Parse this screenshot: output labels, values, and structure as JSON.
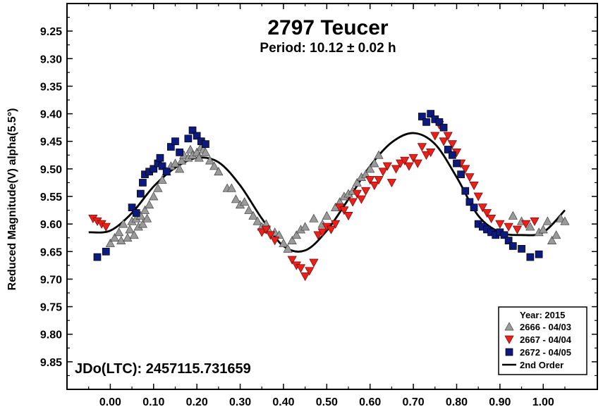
{
  "chart_data": {
    "type": "scatter",
    "title": "2797 Teucer",
    "subtitle": "Period: 10.12 ± 0.02 h",
    "xlabel": "",
    "ylabel": "Reduced Magnitude(V) alpha(5.5°)",
    "xlim": [
      -0.1,
      1.125
    ],
    "ylim": [
      9.9,
      9.2
    ],
    "y_inverted": true,
    "x_ticks": [
      "0.00",
      "0.10",
      "0.20",
      "0.30",
      "0.40",
      "0.50",
      "0.60",
      "0.70",
      "0.80",
      "0.90",
      "1.00"
    ],
    "y_ticks": [
      "9.25",
      "9.30",
      "9.35",
      "9.40",
      "9.45",
      "9.50",
      "9.55",
      "9.60",
      "9.65",
      "9.70",
      "9.75",
      "9.80",
      "9.85"
    ],
    "grid": false,
    "annotation": "JDo(LTC): 2457115.731659",
    "legend": {
      "position": "bottom-right",
      "title": "Year: 2015",
      "entries": [
        {
          "label": "2666 - 04/03",
          "marker": "triangle-up",
          "color": "#9a9a9a"
        },
        {
          "label": "2667 - 04/04",
          "marker": "triangle-down",
          "color": "#e8211b"
        },
        {
          "label": "2672 - 04/05",
          "marker": "square",
          "color": "#0d1a7d"
        },
        {
          "label": "2nd Order",
          "marker": "line",
          "color": "#000000"
        }
      ]
    },
    "series": [
      {
        "name": "2666 - 04/03",
        "marker": "triangle-up",
        "color": "#9a9a9a",
        "points": [
          [
            0.0,
            9.635
          ],
          [
            0.01,
            9.625
          ],
          [
            0.02,
            9.615
          ],
          [
            0.025,
            9.63
          ],
          [
            0.03,
            9.6
          ],
          [
            0.04,
            9.625
          ],
          [
            0.045,
            9.61
          ],
          [
            0.05,
            9.595
          ],
          [
            0.055,
            9.62
          ],
          [
            0.06,
            9.59
          ],
          [
            0.065,
            9.605
          ],
          [
            0.07,
            9.585
          ],
          [
            0.075,
            9.6
          ],
          [
            0.08,
            9.575
          ],
          [
            0.085,
            9.59
          ],
          [
            0.09,
            9.565
          ],
          [
            0.1,
            9.55
          ],
          [
            0.11,
            9.535
          ],
          [
            0.12,
            9.52
          ],
          [
            0.13,
            9.505
          ],
          [
            0.14,
            9.495
          ],
          [
            0.15,
            9.49
          ],
          [
            0.16,
            9.5
          ],
          [
            0.165,
            9.485
          ],
          [
            0.17,
            9.475
          ],
          [
            0.18,
            9.48
          ],
          [
            0.185,
            9.465
          ],
          [
            0.19,
            9.475
          ],
          [
            0.2,
            9.47
          ],
          [
            0.205,
            9.48
          ],
          [
            0.21,
            9.46
          ],
          [
            0.215,
            9.465
          ],
          [
            0.22,
            9.47
          ],
          [
            0.23,
            9.485
          ],
          [
            0.24,
            9.495
          ],
          [
            0.25,
            9.505
          ],
          [
            0.27,
            9.535
          ],
          [
            0.28,
            9.535
          ],
          [
            0.29,
            9.555
          ],
          [
            0.3,
            9.565
          ],
          [
            0.31,
            9.56
          ],
          [
            0.32,
            9.575
          ],
          [
            0.33,
            9.585
          ],
          [
            0.34,
            9.595
          ],
          [
            0.35,
            9.605
          ],
          [
            0.36,
            9.6
          ],
          [
            0.365,
            9.61
          ],
          [
            0.38,
            9.615
          ],
          [
            0.39,
            9.62
          ],
          [
            0.4,
            9.635
          ],
          [
            0.41,
            9.645
          ],
          [
            0.42,
            9.63
          ],
          [
            0.43,
            9.62
          ],
          [
            0.44,
            9.61
          ],
          [
            0.45,
            9.605
          ],
          [
            0.47,
            9.59
          ],
          [
            0.49,
            9.6
          ],
          [
            0.5,
            9.585
          ],
          [
            0.52,
            9.57
          ],
          [
            0.53,
            9.56
          ],
          [
            0.54,
            9.55
          ],
          [
            0.55,
            9.545
          ],
          [
            0.56,
            9.54
          ],
          [
            0.57,
            9.525
          ],
          [
            0.58,
            9.515
          ],
          [
            0.59,
            9.51
          ],
          [
            0.6,
            9.5
          ],
          [
            0.61,
            9.49
          ],
          [
            0.62,
            9.475
          ],
          [
            0.93,
            9.585
          ],
          [
            0.95,
            9.595
          ],
          [
            0.97,
            9.605
          ],
          [
            0.99,
            9.615
          ],
          [
            1.0,
            9.61
          ],
          [
            1.01,
            9.595
          ],
          [
            1.02,
            9.63
          ],
          [
            1.03,
            9.62
          ],
          [
            1.04,
            9.59
          ],
          [
            1.05,
            9.595
          ]
        ]
      },
      {
        "name": "2667 - 04/04",
        "marker": "triangle-down",
        "color": "#e8211b",
        "points": [
          [
            -0.04,
            9.59
          ],
          [
            -0.03,
            9.595
          ],
          [
            -0.02,
            9.6
          ],
          [
            -0.01,
            9.605
          ],
          [
            0.35,
            9.615
          ],
          [
            0.36,
            9.61
          ],
          [
            0.37,
            9.62
          ],
          [
            0.38,
            9.63
          ],
          [
            0.42,
            9.665
          ],
          [
            0.43,
            9.675
          ],
          [
            0.44,
            9.68
          ],
          [
            0.45,
            9.695
          ],
          [
            0.46,
            9.685
          ],
          [
            0.47,
            9.67
          ],
          [
            0.48,
            9.62
          ],
          [
            0.49,
            9.615
          ],
          [
            0.5,
            9.605
          ],
          [
            0.51,
            9.61
          ],
          [
            0.52,
            9.6
          ],
          [
            0.53,
            9.57
          ],
          [
            0.54,
            9.575
          ],
          [
            0.55,
            9.585
          ],
          [
            0.56,
            9.56
          ],
          [
            0.57,
            9.545
          ],
          [
            0.58,
            9.555
          ],
          [
            0.59,
            9.54
          ],
          [
            0.6,
            9.52
          ],
          [
            0.61,
            9.53
          ],
          [
            0.62,
            9.52
          ],
          [
            0.63,
            9.505
          ],
          [
            0.64,
            9.495
          ],
          [
            0.65,
            9.525
          ],
          [
            0.66,
            9.5
          ],
          [
            0.67,
            9.49
          ],
          [
            0.68,
            9.485
          ],
          [
            0.69,
            9.495
          ],
          [
            0.7,
            9.48
          ],
          [
            0.71,
            9.49
          ],
          [
            0.72,
            9.46
          ],
          [
            0.73,
            9.475
          ],
          [
            0.74,
            9.47
          ],
          [
            0.75,
            9.44
          ],
          [
            0.76,
            9.42
          ],
          [
            0.77,
            9.45
          ],
          [
            0.78,
            9.44
          ],
          [
            0.79,
            9.455
          ],
          [
            0.8,
            9.47
          ],
          [
            0.81,
            9.49
          ],
          [
            0.82,
            9.5
          ],
          [
            0.83,
            9.515
          ],
          [
            0.84,
            9.53
          ],
          [
            0.85,
            9.55
          ],
          [
            0.86,
            9.57
          ],
          [
            0.87,
            9.58
          ],
          [
            0.88,
            9.59
          ],
          [
            0.9,
            9.6
          ],
          [
            0.92,
            9.605
          ],
          [
            0.94,
            9.61
          ],
          [
            0.96,
            9.6
          ],
          [
            0.98,
            9.595
          ]
        ]
      },
      {
        "name": "2672 - 04/05",
        "marker": "square",
        "color": "#0d1a7d",
        "points": [
          [
            -0.03,
            9.66
          ],
          [
            -0.01,
            9.65
          ],
          [
            0.05,
            9.57
          ],
          [
            0.06,
            9.58
          ],
          [
            0.07,
            9.545
          ],
          [
            0.075,
            9.525
          ],
          [
            0.08,
            9.51
          ],
          [
            0.09,
            9.505
          ],
          [
            0.1,
            9.5
          ],
          [
            0.11,
            9.49
          ],
          [
            0.115,
            9.48
          ],
          [
            0.12,
            9.495
          ],
          [
            0.13,
            9.505
          ],
          [
            0.14,
            9.46
          ],
          [
            0.15,
            9.45
          ],
          [
            0.16,
            9.47
          ],
          [
            0.18,
            9.445
          ],
          [
            0.19,
            9.43
          ],
          [
            0.2,
            9.44
          ],
          [
            0.21,
            9.45
          ],
          [
            0.22,
            9.455
          ],
          [
            0.72,
            9.405
          ],
          [
            0.73,
            9.415
          ],
          [
            0.74,
            9.4
          ],
          [
            0.75,
            9.41
          ],
          [
            0.76,
            9.415
          ],
          [
            0.77,
            9.425
          ],
          [
            0.78,
            9.465
          ],
          [
            0.79,
            9.475
          ],
          [
            0.8,
            9.49
          ],
          [
            0.81,
            9.51
          ],
          [
            0.82,
            9.54
          ],
          [
            0.83,
            9.56
          ],
          [
            0.84,
            9.57
          ],
          [
            0.85,
            9.6
          ],
          [
            0.86,
            9.605
          ],
          [
            0.87,
            9.61
          ],
          [
            0.88,
            9.615
          ],
          [
            0.89,
            9.62
          ],
          [
            0.9,
            9.615
          ],
          [
            0.91,
            9.62
          ],
          [
            0.92,
            9.63
          ],
          [
            0.93,
            9.64
          ],
          [
            0.95,
            9.645
          ],
          [
            0.97,
            9.66
          ],
          [
            0.99,
            9.655
          ]
        ]
      }
    ],
    "fit_curve": {
      "name": "2nd Order",
      "points": [
        [
          -0.05,
          9.615
        ],
        [
          0.0,
          9.612
        ],
        [
          0.05,
          9.58
        ],
        [
          0.1,
          9.532
        ],
        [
          0.15,
          9.498
        ],
        [
          0.2,
          9.48
        ],
        [
          0.25,
          9.488
        ],
        [
          0.3,
          9.53
        ],
        [
          0.35,
          9.59
        ],
        [
          0.4,
          9.64
        ],
        [
          0.45,
          9.648
        ],
        [
          0.5,
          9.612
        ],
        [
          0.55,
          9.555
        ],
        [
          0.6,
          9.495
        ],
        [
          0.65,
          9.452
        ],
        [
          0.7,
          9.435
        ],
        [
          0.75,
          9.455
        ],
        [
          0.8,
          9.515
        ],
        [
          0.85,
          9.585
        ],
        [
          0.9,
          9.615
        ],
        [
          0.95,
          9.62
        ],
        [
          1.0,
          9.615
        ],
        [
          1.05,
          9.575
        ]
      ]
    }
  }
}
